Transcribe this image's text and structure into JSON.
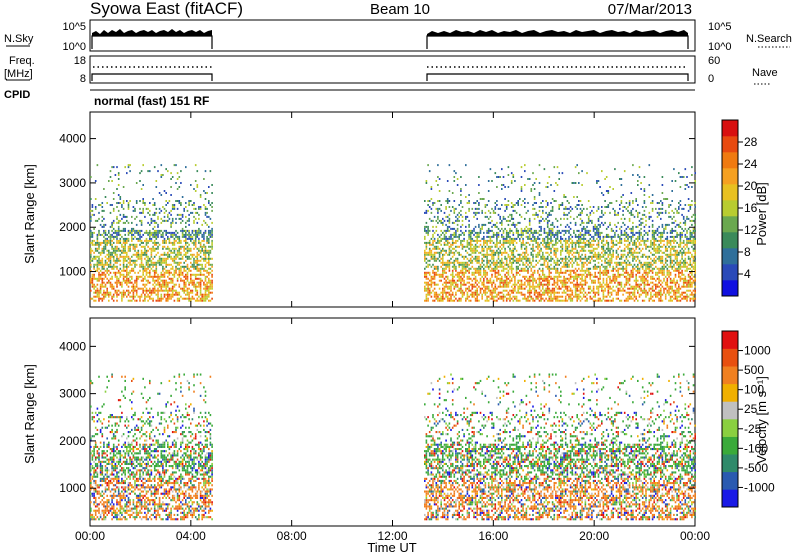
{
  "header": {
    "title": "Syowa East (fitACF)",
    "beam": "Beam 10",
    "date": "07/Mar/2013"
  },
  "params": {
    "nsky_label": "N.Sky",
    "nsearch_label": "N.Search",
    "freq_label_line1": "Freq.",
    "freq_label_line2": "[MHz]",
    "nave_label": "Nave",
    "cpid_label": "CPID",
    "nsky_ticks": [
      "10^5",
      "10^0"
    ],
    "nsearch_ticks": [
      "10^5",
      "10^0"
    ],
    "freq_ticks": [
      "18",
      "8"
    ],
    "nave_ticks": [
      "60",
      "0"
    ],
    "cpid_text": "normal (fast) 151 RF"
  },
  "colors": {
    "power_scale": [
      "#1010e0",
      "#2a4ab8",
      "#2f6f9a",
      "#3a8a5a",
      "#6aa84f",
      "#b8cc30",
      "#e8c020",
      "#f5a020",
      "#f07a10",
      "#e84a10",
      "#d81010"
    ],
    "velocity_scale": [
      "#1a1ae6",
      "#2a5ab0",
      "#2f8a6a",
      "#3aaa3a",
      "#8ad040",
      "#c0c0c0",
      "#f0b000",
      "#f08020",
      "#e85010",
      "#e01010"
    ]
  },
  "chart_data": [
    {
      "type": "heatmap",
      "title": "",
      "xlabel": "",
      "ylabel": "Slant Range [km]",
      "x_ticks": [
        "00:00",
        "04:00",
        "08:00",
        "12:00",
        "16:00",
        "20:00",
        "00:00"
      ],
      "xlim": [
        0,
        24
      ],
      "ylim": [
        200,
        4600
      ],
      "y_ticks": [
        1000,
        2000,
        3000,
        4000
      ],
      "colorbar": {
        "label": "Power [dB]",
        "ticks": [
          "28",
          "24",
          "20",
          "16",
          "12",
          "8",
          "4"
        ],
        "range": [
          0,
          30
        ]
      },
      "data_intervals_hours": [
        [
          0.0,
          4.85
        ],
        [
          13.25,
          24.0
        ]
      ]
    },
    {
      "type": "heatmap",
      "title": "",
      "xlabel": "Time UT",
      "ylabel": "Slant Range [km]",
      "x_ticks": [
        "00:00",
        "04:00",
        "08:00",
        "12:00",
        "16:00",
        "20:00",
        "00:00"
      ],
      "xlim": [
        0,
        24
      ],
      "ylim": [
        200,
        4600
      ],
      "y_ticks": [
        1000,
        2000,
        3000,
        4000
      ],
      "colorbar": {
        "label": "Velocity [m s⁻¹]",
        "ticks": [
          "1000",
          "500",
          "100",
          "25",
          "-25",
          "-100",
          "-500",
          "-1000"
        ],
        "range": [
          -1000,
          1000
        ]
      },
      "data_intervals_hours": [
        [
          0.0,
          4.85
        ],
        [
          13.25,
          24.0
        ]
      ]
    }
  ]
}
